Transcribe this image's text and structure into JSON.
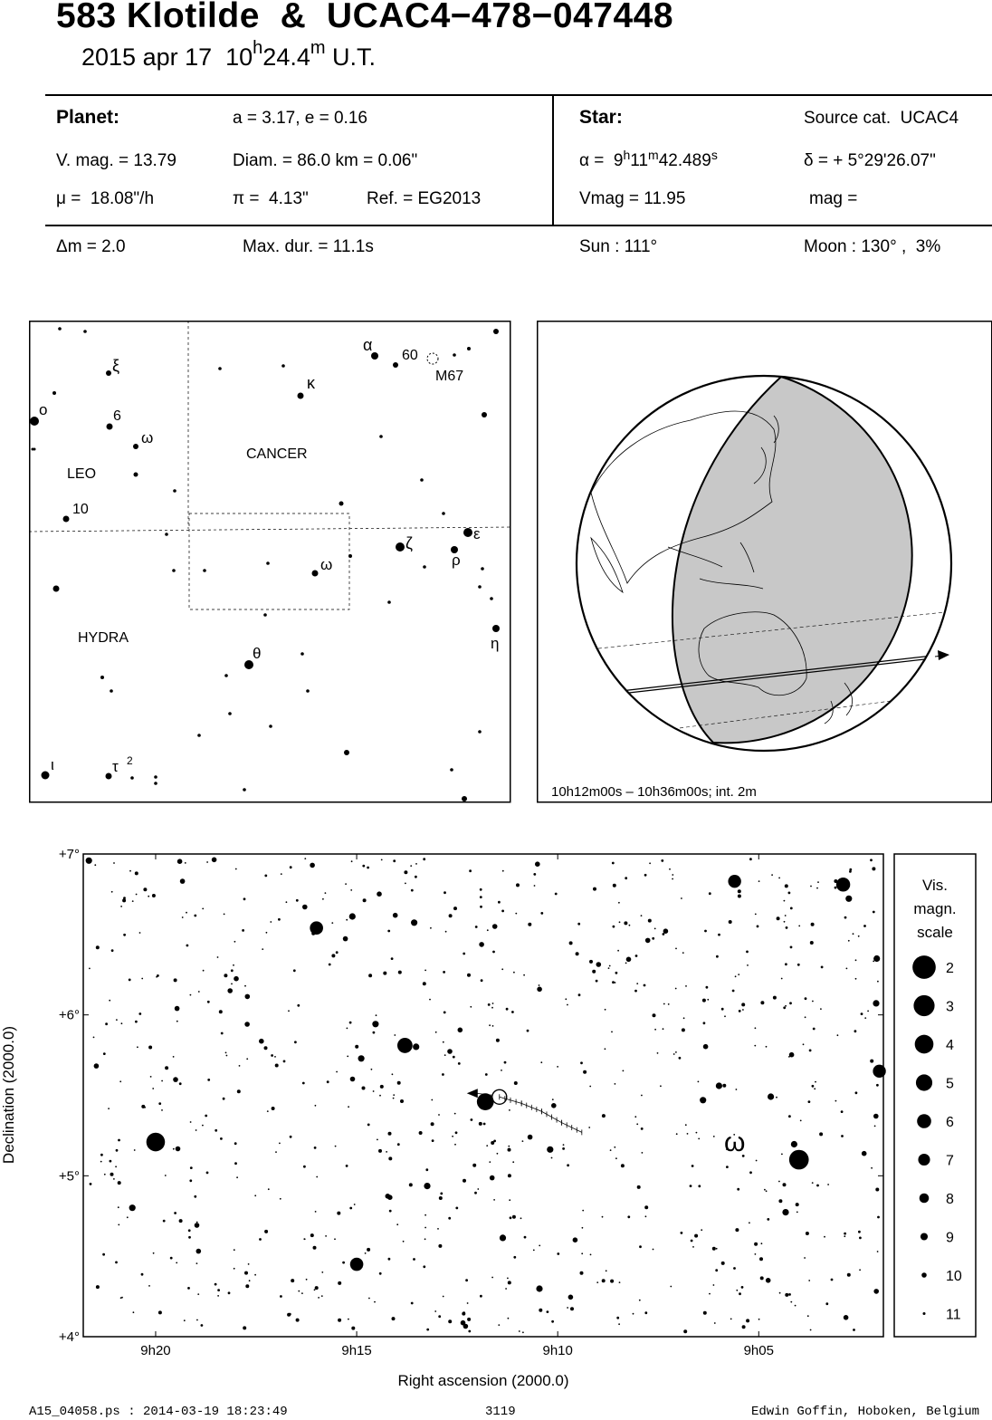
{
  "header": {
    "title": "583 Klotilde  &  UCAC4−478−047448",
    "date_prefix": "2015 apr 17  10",
    "h_sup": "h",
    "date_min": "24.4",
    "m_sup": "m",
    "date_suffix": " U.T."
  },
  "planet": {
    "heading": "Planet:",
    "orbit": "a = 3.17, e = 0.16",
    "vmag": "V. mag. = 13.79",
    "diam": "Diam. = 86.0 km = 0.06\"",
    "mu": "μ =  18.08\"/h",
    "pi": "π =  4.13\"",
    "ref": "Ref. = EG2013"
  },
  "star": {
    "heading": "Star:",
    "source": "Source cat.  UCAC4",
    "ra_prefix": "α =  9",
    "ra_h": "h",
    "ra_min": "11",
    "ra_m": "m",
    "ra_sec": "42.489",
    "ra_s": "s",
    "dec": "δ = + 5°29'26.07\"",
    "vmag": "Vmag = 11.95",
    "mag": "mag ="
  },
  "event": {
    "dm": "Δm = 2.0",
    "maxdur": "Max. dur. = 11.1s",
    "sun": "Sun : 111°",
    "moon": "Moon : 130° ,  3%"
  },
  "finder": {
    "constellations": [
      "CANCER",
      "LEO",
      "HYDRA"
    ],
    "labels": {
      "alpha": "α",
      "sixty": "60",
      "m67": "M67",
      "kappa": "κ",
      "xi": "ξ",
      "omicron": "o",
      "six": "6",
      "omega_leo": "ω",
      "ten": "10",
      "zeta": "ζ",
      "epsilon": "ε",
      "rho": "ρ",
      "omega": "ω",
      "eta": "η",
      "theta": "θ",
      "iota": "ι",
      "tau": "τ",
      "tau_sup": "2"
    }
  },
  "globe": {
    "caption": "10h12m00s – 10h36m00s; int.  2m"
  },
  "chart_data": {
    "type": "scatter",
    "xlabel": "Right ascension (2000.0)",
    "ylabel": "Declination (2000.0)",
    "x_ticks": [
      "9h20",
      "9h15",
      "9h10",
      "9h05"
    ],
    "x_tick_values_min": [
      20,
      15,
      10,
      5
    ],
    "y_ticks": [
      "+7°",
      "+6°",
      "+5°",
      "+4°"
    ],
    "y_tick_values_deg": [
      7,
      6,
      5,
      4
    ],
    "xlim_min": [
      21.8,
      1.9
    ],
    "ylim_deg": [
      4.0,
      7.0
    ],
    "omega_label": "ω",
    "bright_stars": [
      {
        "ra_min": 20.0,
        "dec": 5.21,
        "mag": 4.6
      },
      {
        "ra_min": 11.8,
        "dec": 5.46,
        "mag": 5.3
      },
      {
        "ra_min": 4.0,
        "dec": 5.1,
        "mag": 4.2
      },
      {
        "ra_min": 13.8,
        "dec": 5.81,
        "mag": 6.0
      },
      {
        "ra_min": 16.0,
        "dec": 6.54,
        "mag": 6.8
      },
      {
        "ra_min": 15.0,
        "dec": 4.45,
        "mag": 6.8
      },
      {
        "ra_min": 2.9,
        "dec": 6.81,
        "mag": 6.5
      },
      {
        "ra_min": 5.6,
        "dec": 6.83,
        "mag": 6.9
      },
      {
        "ra_min": 2.0,
        "dec": 5.65,
        "mag": 6.9
      }
    ],
    "track_points_min_dec": [
      [
        11.45,
        5.49
      ],
      [
        10.9,
        5.45
      ],
      [
        10.4,
        5.4
      ],
      [
        9.9,
        5.33
      ],
      [
        9.4,
        5.27
      ]
    ],
    "legend_title": [
      "Vis.",
      "magn.",
      "scale"
    ],
    "legend_mags": [
      2,
      3,
      4,
      5,
      6,
      7,
      8,
      9,
      10,
      11
    ]
  },
  "footer": {
    "file": "A15_04058.ps : 2014-03-19 18:23:49",
    "number": "3119",
    "author": "Edwin Goffin, Hoboken, Belgium"
  }
}
